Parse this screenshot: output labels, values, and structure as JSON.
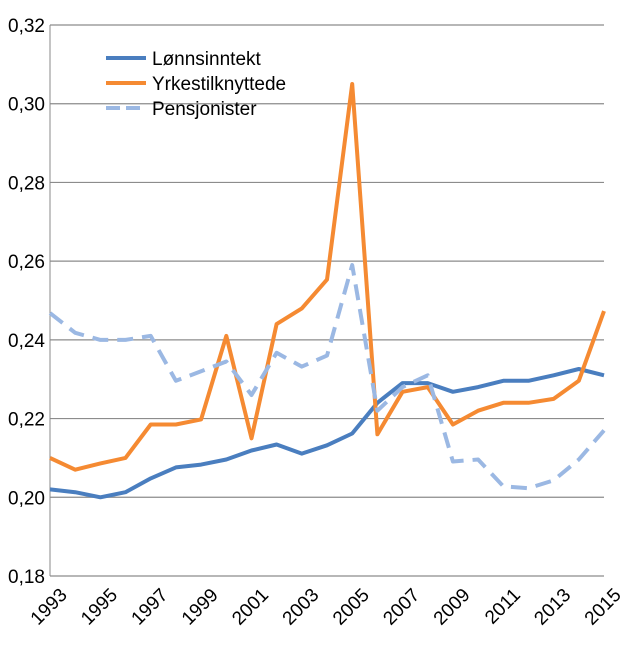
{
  "chart_data": {
    "type": "line",
    "title": "",
    "xlabel": "",
    "ylabel": "",
    "ylim": [
      0.18,
      0.32
    ],
    "yticks": [
      "0,18",
      "0,20",
      "0,22",
      "0,24",
      "0,26",
      "0,28",
      "0,30",
      "0,32"
    ],
    "xtick_labels": [
      "1993",
      "1995",
      "1997",
      "1999",
      "2001",
      "2003",
      "2005",
      "2007",
      "2009",
      "2011",
      "2013",
      "2015"
    ],
    "grid": "horizontal",
    "legend_placement": "top-left",
    "x": [
      1993,
      1994,
      1995,
      1996,
      1997,
      1998,
      1999,
      2000,
      2001,
      2002,
      2003,
      2004,
      2005,
      2006,
      2007,
      2008,
      2009,
      2010,
      2011,
      2012,
      2013,
      2014,
      2015
    ],
    "series": [
      {
        "name": "Lønnsinntekt",
        "color": "#4a7ebf",
        "dash": false,
        "values": [
          0.202,
          0.2013,
          0.2,
          0.2013,
          0.2048,
          0.2076,
          0.2083,
          0.2096,
          0.2119,
          0.2134,
          0.2111,
          0.2132,
          0.2162,
          0.224,
          0.229,
          0.229,
          0.2268,
          0.228,
          0.2296,
          0.2296,
          0.231,
          0.2326,
          0.231
        ]
      },
      {
        "name": "Yrkestilknyttede",
        "color": "#f58a32",
        "dash": false,
        "values": [
          0.21,
          0.207,
          0.2086,
          0.21,
          0.2185,
          0.2185,
          0.2198,
          0.241,
          0.215,
          0.244,
          0.248,
          0.2553,
          0.305,
          0.216,
          0.2268,
          0.228,
          0.2185,
          0.222,
          0.224,
          0.224,
          0.225,
          0.2296,
          0.2473
        ]
      },
      {
        "name": "Pensjonister",
        "color": "#9bb8e3",
        "dash": true,
        "values": [
          0.2468,
          0.2418,
          0.24,
          0.24,
          0.241,
          0.2296,
          0.232,
          0.2345,
          0.226,
          0.2367,
          0.2332,
          0.236,
          0.259,
          0.222,
          0.228,
          0.231,
          0.2091,
          0.2096,
          0.2028,
          0.2023,
          0.2043,
          0.2096,
          0.217
        ]
      }
    ]
  }
}
